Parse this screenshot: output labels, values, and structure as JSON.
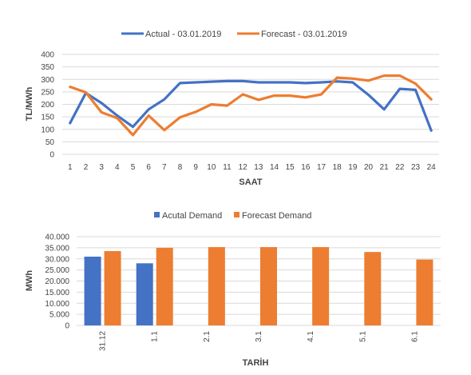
{
  "chart_data": [
    {
      "type": "line",
      "title": "",
      "xlabel": "SAAT",
      "ylabel": "TL/MWh",
      "ylim": [
        0,
        400
      ],
      "yticks": [
        "0",
        "50",
        "100",
        "150",
        "200",
        "250",
        "300",
        "350",
        "400"
      ],
      "grid": true,
      "legend_position": "top",
      "categories": [
        "1",
        "2",
        "3",
        "4",
        "5",
        "6",
        "7",
        "8",
        "9",
        "10",
        "11",
        "12",
        "13",
        "14",
        "15",
        "16",
        "17",
        "18",
        "19",
        "20",
        "21",
        "22",
        "23",
        "24"
      ],
      "series": [
        {
          "name": "Actual - 03.01.2019",
          "color": "#4472C4",
          "values": [
            125,
            245,
            205,
            155,
            110,
            180,
            220,
            285,
            288,
            291,
            293,
            293,
            288,
            288,
            288,
            285,
            288,
            292,
            288,
            238,
            180,
            262,
            258,
            95
          ]
        },
        {
          "name": "Forecast - 03.01.2019",
          "color": "#ED7D31",
          "values": [
            270,
            248,
            168,
            145,
            77,
            155,
            97,
            148,
            170,
            200,
            195,
            240,
            218,
            235,
            235,
            228,
            240,
            307,
            303,
            295,
            315,
            315,
            283,
            220
          ]
        }
      ]
    },
    {
      "type": "bar",
      "title": "",
      "xlabel": "TARİH",
      "ylabel": "MWh",
      "ylim": [
        0,
        40000
      ],
      "yticks": [
        "0",
        "5.000",
        "10.000",
        "15.000",
        "20.000",
        "25.000",
        "30.000",
        "35.000",
        "40.000"
      ],
      "grid": true,
      "legend_position": "top",
      "categories": [
        "31.12",
        "1.1",
        "2.1",
        "3.1",
        "4.1",
        "5.1",
        "6.1"
      ],
      "series": [
        {
          "name": "Acutal Demand",
          "color": "#4472C4",
          "values": [
            31000,
            28000,
            null,
            null,
            null,
            null,
            null
          ]
        },
        {
          "name": "Forecast Demand",
          "color": "#ED7D31",
          "values": [
            33500,
            35000,
            35300,
            35300,
            35300,
            33100,
            29700
          ]
        }
      ]
    }
  ]
}
